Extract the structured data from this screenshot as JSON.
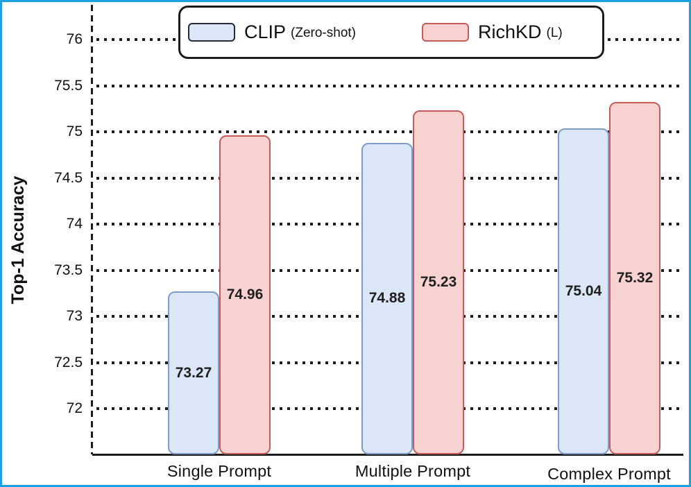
{
  "figure": {
    "accent_border_color": "#1ba1e3",
    "background_color": "#ffffff"
  },
  "chart_data": {
    "type": "bar",
    "title": "",
    "categories": [
      "Single Prompt",
      "Multiple Prompt",
      "Complex Prompt"
    ],
    "series": [
      {
        "name": "CLIP (Zero-shot)",
        "legend_label": "CLIP",
        "legend_sublabel": "(Zero-shot)",
        "values": [
          73.27,
          74.88,
          75.04
        ],
        "fill_color": "#dbe6f7",
        "border_color": "#7e9bcd",
        "legend_swatch_border_color": "#262b38"
      },
      {
        "name": "RichKD (L)",
        "legend_label": "RichKD",
        "legend_sublabel": "(L)",
        "values": [
          74.96,
          75.23,
          75.32
        ],
        "fill_color": "#f8d1d1",
        "border_color": "#c45c5a",
        "legend_swatch_border_color": "#c45c5a"
      }
    ],
    "xlabel": "",
    "ylabel": "Top-1 Accuracy",
    "yticks": [
      76,
      75.5,
      75,
      74.5,
      74,
      73.5,
      73,
      72.5,
      72
    ],
    "ylim": [
      71.5,
      76.4
    ],
    "bar_value_decimals": 2,
    "grid": "dotted-horizontal",
    "legend_position": "top-center",
    "axis_style": "dashed-y-solid-x",
    "axis_color": "#1c1c1c"
  }
}
